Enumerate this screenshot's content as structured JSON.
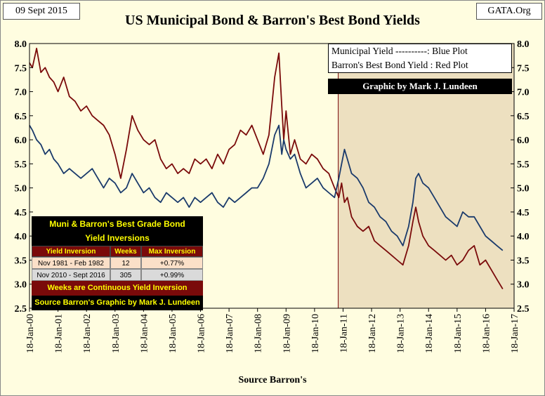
{
  "header": {
    "date": "09 Sept 2015",
    "source_tag": "GATA.Org",
    "title": "US Municipal Bond & Barron's  Best Bond Yields"
  },
  "legend": {
    "line1": "Municipal  Yield ----------: Blue Plot",
    "line2": "Barron's Best Bond  Yield : Red Plot",
    "credit": "Graphic by Mark J. Lundeen"
  },
  "inversion_table": {
    "title_line1": "Muni & Barron's Best Grade Bond",
    "title_line2": "Yield Inversions",
    "columns": [
      "Yield Inversion",
      "Weeks",
      "Max Inversion"
    ],
    "rows": [
      [
        "Nov 1981 - Feb 1982",
        "12",
        "+0.77%"
      ],
      [
        "Nov 2010 - Sept 2016",
        "305",
        "+0.99%"
      ]
    ],
    "footer1": "Weeks are Continuous Yield Inversion",
    "footer2": "Source Barron's Graphic by Mark J. Lundeen"
  },
  "colors": {
    "muni": "#1a3a6b",
    "barrons": "#7a0a0a",
    "bg": "#fffde0",
    "shade": "#ede0c0"
  },
  "chart_data": {
    "type": "line",
    "title": "US Municipal Bond & Barron's  Best Bond Yields",
    "xlabel": "Source Barron's",
    "ylabel": "",
    "ylim": [
      2.5,
      8.0
    ],
    "yticks": [
      "8.0",
      "7.5",
      "7.0",
      "6.5",
      "6.0",
      "5.5",
      "5.0",
      "4.5",
      "4.0",
      "3.5",
      "3.0",
      "2.5"
    ],
    "xticks": [
      "18-Jan-00",
      "18-Jan-01",
      "18-Jan-02",
      "18-Jan-03",
      "18-Jan-04",
      "18-Jan-05",
      "18-Jan-06",
      "18-Jan-07",
      "18-Jan-08",
      "18-Jan-09",
      "18-Jan-10",
      "18-Jan-11",
      "18-Jan-12",
      "18-Jan-13",
      "18-Jan-14",
      "18-Jan-15",
      "18-Jan-16",
      "18-Jan-17"
    ],
    "xlim": [
      2000.0,
      2017.0
    ],
    "shaded_region": [
      2010.83,
      2017.0
    ],
    "series": [
      {
        "name": "Municipal Yield",
        "color": "#1a3a6b",
        "x": [
          2000.0,
          2000.1,
          2000.25,
          2000.4,
          2000.55,
          2000.7,
          2000.85,
          2001.0,
          2001.2,
          2001.4,
          2001.6,
          2001.8,
          2002.0,
          2002.2,
          2002.4,
          2002.6,
          2002.8,
          2003.0,
          2003.2,
          2003.4,
          2003.6,
          2003.8,
          2004.0,
          2004.2,
          2004.4,
          2004.6,
          2004.8,
          2005.0,
          2005.2,
          2005.4,
          2005.6,
          2005.8,
          2006.0,
          2006.2,
          2006.4,
          2006.6,
          2006.8,
          2007.0,
          2007.2,
          2007.4,
          2007.6,
          2007.8,
          2008.0,
          2008.2,
          2008.4,
          2008.6,
          2008.75,
          2008.85,
          2008.92,
          2009.0,
          2009.15,
          2009.3,
          2009.5,
          2009.7,
          2009.9,
          2010.1,
          2010.3,
          2010.5,
          2010.7,
          2010.85,
          2010.95,
          2011.05,
          2011.15,
          2011.3,
          2011.5,
          2011.7,
          2011.9,
          2012.1,
          2012.3,
          2012.5,
          2012.7,
          2012.9,
          2013.1,
          2013.3,
          2013.45,
          2013.55,
          2013.65,
          2013.8,
          2014.0,
          2014.2,
          2014.4,
          2014.6,
          2014.8,
          2015.0,
          2015.2,
          2015.4,
          2015.6,
          2015.8,
          2016.0,
          2016.2,
          2016.4,
          2016.6
        ],
        "values": [
          6.3,
          6.2,
          6.0,
          5.9,
          5.7,
          5.8,
          5.6,
          5.5,
          5.3,
          5.4,
          5.3,
          5.2,
          5.3,
          5.4,
          5.2,
          5.0,
          5.2,
          5.1,
          4.9,
          5.0,
          5.3,
          5.1,
          4.9,
          5.0,
          4.8,
          4.7,
          4.9,
          4.8,
          4.7,
          4.8,
          4.6,
          4.8,
          4.7,
          4.8,
          4.9,
          4.7,
          4.6,
          4.8,
          4.7,
          4.8,
          4.9,
          5.0,
          5.0,
          5.2,
          5.5,
          6.1,
          6.3,
          5.7,
          6.0,
          5.8,
          5.6,
          5.7,
          5.3,
          5.0,
          5.1,
          5.2,
          5.0,
          4.9,
          4.8,
          5.2,
          5.5,
          5.8,
          5.6,
          5.3,
          5.2,
          5.0,
          4.7,
          4.6,
          4.4,
          4.3,
          4.1,
          4.0,
          3.8,
          4.2,
          4.7,
          5.2,
          5.3,
          5.1,
          5.0,
          4.8,
          4.6,
          4.4,
          4.3,
          4.2,
          4.5,
          4.4,
          4.4,
          4.2,
          4.0,
          3.9,
          3.8,
          3.7
        ]
      },
      {
        "name": "Barron's Best Bond Yield",
        "color": "#7a0a0a",
        "x": [
          2000.0,
          2000.1,
          2000.25,
          2000.4,
          2000.55,
          2000.7,
          2000.85,
          2001.0,
          2001.2,
          2001.4,
          2001.6,
          2001.8,
          2002.0,
          2002.2,
          2002.4,
          2002.6,
          2002.8,
          2003.0,
          2003.2,
          2003.4,
          2003.6,
          2003.8,
          2004.0,
          2004.2,
          2004.4,
          2004.6,
          2004.8,
          2005.0,
          2005.2,
          2005.4,
          2005.6,
          2005.8,
          2006.0,
          2006.2,
          2006.4,
          2006.6,
          2006.8,
          2007.0,
          2007.2,
          2007.4,
          2007.6,
          2007.8,
          2008.0,
          2008.2,
          2008.4,
          2008.6,
          2008.75,
          2008.85,
          2008.92,
          2009.0,
          2009.15,
          2009.3,
          2009.5,
          2009.7,
          2009.9,
          2010.1,
          2010.3,
          2010.5,
          2010.7,
          2010.85,
          2010.95,
          2011.05,
          2011.15,
          2011.3,
          2011.5,
          2011.7,
          2011.9,
          2012.1,
          2012.3,
          2012.5,
          2012.7,
          2012.9,
          2013.1,
          2013.3,
          2013.45,
          2013.55,
          2013.65,
          2013.8,
          2014.0,
          2014.2,
          2014.4,
          2014.6,
          2014.8,
          2015.0,
          2015.2,
          2015.4,
          2015.6,
          2015.8,
          2016.0,
          2016.2,
          2016.4,
          2016.6
        ],
        "values": [
          7.6,
          7.5,
          7.9,
          7.4,
          7.5,
          7.3,
          7.2,
          7.0,
          7.3,
          6.9,
          6.8,
          6.6,
          6.7,
          6.5,
          6.4,
          6.3,
          6.1,
          5.7,
          5.2,
          5.8,
          6.5,
          6.2,
          6.0,
          5.9,
          6.0,
          5.6,
          5.4,
          5.5,
          5.3,
          5.4,
          5.3,
          5.6,
          5.5,
          5.6,
          5.4,
          5.7,
          5.5,
          5.8,
          5.9,
          6.2,
          6.1,
          6.3,
          6.0,
          5.7,
          6.1,
          7.3,
          7.8,
          6.7,
          6.0,
          6.6,
          5.7,
          6.0,
          5.6,
          5.5,
          5.7,
          5.6,
          5.4,
          5.3,
          5.0,
          4.8,
          5.1,
          4.7,
          4.8,
          4.4,
          4.2,
          4.1,
          4.2,
          3.9,
          3.8,
          3.7,
          3.6,
          3.5,
          3.4,
          3.8,
          4.3,
          4.6,
          4.3,
          4.0,
          3.8,
          3.7,
          3.6,
          3.5,
          3.6,
          3.4,
          3.5,
          3.7,
          3.8,
          3.4,
          3.5,
          3.3,
          3.1,
          2.9
        ]
      }
    ]
  }
}
